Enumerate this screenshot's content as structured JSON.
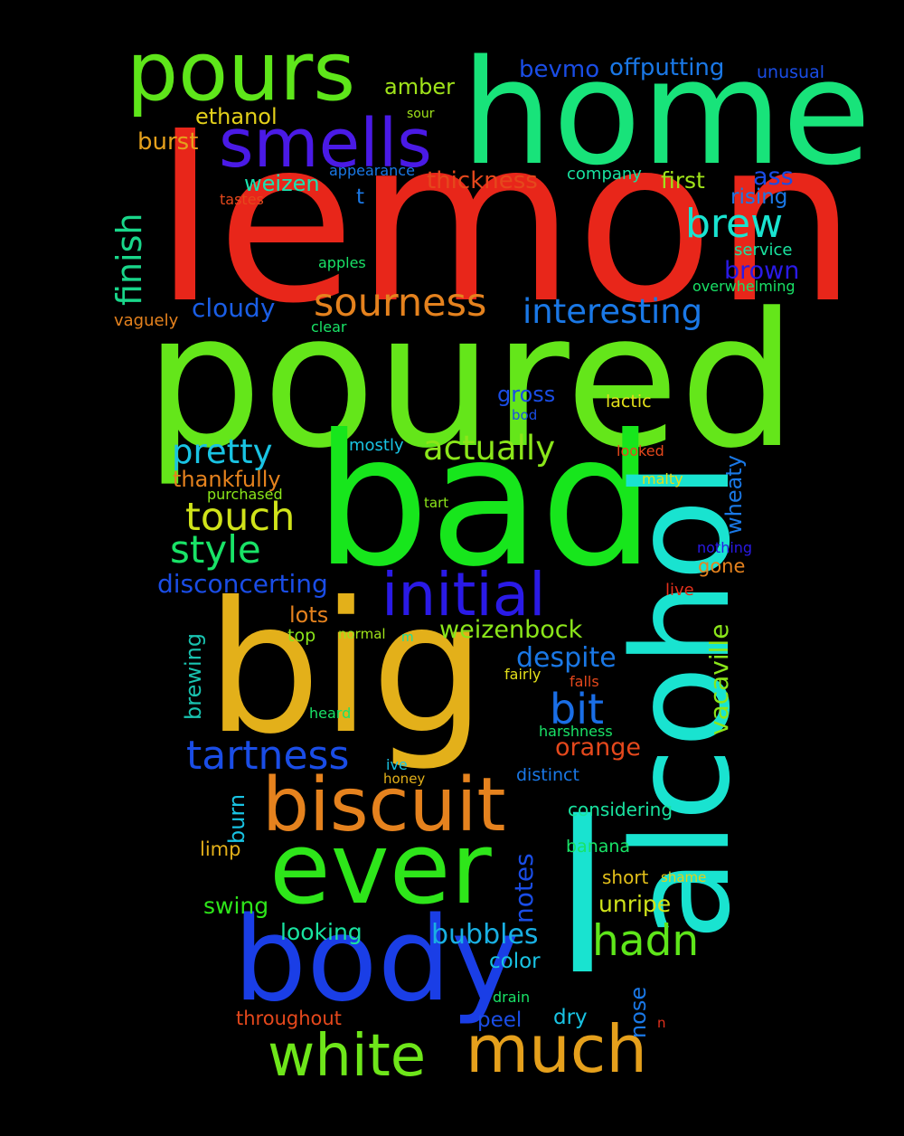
{
  "background": "#000000",
  "words": [
    {
      "text": "lemon",
      "color": "#e8261a"
    },
    {
      "text": "poured",
      "color": "#64e61a"
    },
    {
      "text": "bad",
      "color": "#17e61c"
    },
    {
      "text": "home",
      "color": "#18e37a"
    },
    {
      "text": "big",
      "color": "#e3b01a"
    },
    {
      "text": "alcohol",
      "color": "#19e3d0"
    },
    {
      "text": "pours",
      "color": "#5ee61a"
    },
    {
      "text": "smells",
      "color": "#4a1ae6"
    },
    {
      "text": "l",
      "color": "#19e3d0"
    },
    {
      "text": "body",
      "color": "#1a3ee6"
    },
    {
      "text": "ever",
      "color": "#2ee61a"
    },
    {
      "text": "biscuit",
      "color": "#e5821e"
    },
    {
      "text": "initial",
      "color": "#2a1ae6"
    },
    {
      "text": "much",
      "color": "#e5a01c"
    },
    {
      "text": "white",
      "color": "#6ee61a"
    },
    {
      "text": "sourness",
      "color": "#e5821e"
    },
    {
      "text": "finish",
      "color": "#19d68a"
    },
    {
      "text": "tartness",
      "color": "#1a4de6"
    },
    {
      "text": "brew",
      "color": "#19e3d0"
    },
    {
      "text": "hadn",
      "color": "#5ee61a"
    },
    {
      "text": "interesting",
      "color": "#1a78e6"
    },
    {
      "text": "actually",
      "color": "#8be61a"
    },
    {
      "text": "pretty",
      "color": "#19c3e3"
    },
    {
      "text": "touch",
      "color": "#d0e31a"
    },
    {
      "text": "style",
      "color": "#19e367"
    },
    {
      "text": "bit",
      "color": "#1a6ee6"
    },
    {
      "text": "vacaville",
      "color": "#8be61a"
    },
    {
      "text": "bubbles",
      "color": "#19b0e3"
    },
    {
      "text": "despite",
      "color": "#1a78e6"
    },
    {
      "text": "weizenbock",
      "color": "#8be61a"
    },
    {
      "text": "disconcerting",
      "color": "#1a4de6"
    },
    {
      "text": "notes",
      "color": "#1a4de6"
    },
    {
      "text": "cloudy",
      "color": "#1a5ee6"
    },
    {
      "text": "thickness",
      "color": "#e5481c"
    },
    {
      "text": "brown",
      "color": "#2a1ae6"
    },
    {
      "text": "bevmo",
      "color": "#1a4de6"
    },
    {
      "text": "offputting",
      "color": "#1a78e6"
    },
    {
      "text": "wheaty",
      "color": "#1a78e6"
    },
    {
      "text": "brewing",
      "color": "#19c3b0"
    },
    {
      "text": "orange",
      "color": "#e5481c"
    },
    {
      "text": "unripe",
      "color": "#d0e31a"
    },
    {
      "text": "looking",
      "color": "#19e3a0"
    },
    {
      "text": "swing",
      "color": "#2ee61a"
    },
    {
      "text": "nose",
      "color": "#1a78e6"
    },
    {
      "text": "first",
      "color": "#a0e31a"
    },
    {
      "text": "weizen",
      "color": "#19e3b0"
    },
    {
      "text": "ass",
      "color": "#1a4de6"
    },
    {
      "text": "burn",
      "color": "#19c3e3"
    },
    {
      "text": "burst",
      "color": "#e5a01c"
    },
    {
      "text": "amber",
      "color": "#a0e31a"
    },
    {
      "text": "thankfully",
      "color": "#e5821e"
    },
    {
      "text": "gross",
      "color": "#1a4de6"
    },
    {
      "text": "lots",
      "color": "#e5821e"
    },
    {
      "text": "rising",
      "color": "#1a78e6"
    },
    {
      "text": "ethanol",
      "color": "#e3d01a"
    },
    {
      "text": "color",
      "color": "#19c3e3"
    },
    {
      "text": "peel",
      "color": "#1a4de6"
    },
    {
      "text": "dry",
      "color": "#19c3e3"
    },
    {
      "text": "t",
      "color": "#1a78e6"
    },
    {
      "text": "throughout",
      "color": "#e5481c"
    },
    {
      "text": "limp",
      "color": "#e3b01a"
    },
    {
      "text": "considering",
      "color": "#19e3a0"
    },
    {
      "text": "short",
      "color": "#e3c01a"
    },
    {
      "text": "gone",
      "color": "#e5821e"
    },
    {
      "text": "distinct",
      "color": "#1a78e6"
    },
    {
      "text": "banana",
      "color": "#19e367"
    },
    {
      "text": "lactic",
      "color": "#e3e01a"
    },
    {
      "text": "mostly",
      "color": "#19c3e3"
    },
    {
      "text": "vaguely",
      "color": "#e5821e"
    },
    {
      "text": "service",
      "color": "#19e3a0"
    },
    {
      "text": "company",
      "color": "#19e3a0"
    },
    {
      "text": "top",
      "color": "#8be61a"
    },
    {
      "text": "overwhelming",
      "color": "#19e367"
    },
    {
      "text": "purchased",
      "color": "#8be61a"
    },
    {
      "text": "appearance",
      "color": "#1a78e6"
    },
    {
      "text": "unusual",
      "color": "#1a4de6"
    },
    {
      "text": "heard",
      "color": "#19e367"
    },
    {
      "text": "harshness",
      "color": "#19e367"
    },
    {
      "text": "looked",
      "color": "#e5481c"
    },
    {
      "text": "malty",
      "color": "#e3e01a"
    },
    {
      "text": "live",
      "color": "#e5301c"
    },
    {
      "text": "nothing",
      "color": "#2a1ae6"
    },
    {
      "text": "apples",
      "color": "#19e367"
    },
    {
      "text": "clear",
      "color": "#19e367"
    },
    {
      "text": "tastes",
      "color": "#e5481c"
    },
    {
      "text": "sour",
      "color": "#a0e31a"
    },
    {
      "text": "tart",
      "color": "#8be61a"
    },
    {
      "text": "bod",
      "color": "#1a4de6"
    },
    {
      "text": "normal",
      "color": "#a0e31a"
    },
    {
      "text": "m",
      "color": "#19e3a0"
    },
    {
      "text": "fairly",
      "color": "#e3e01a"
    },
    {
      "text": "falls",
      "color": "#e5481c"
    },
    {
      "text": "ive",
      "color": "#19c3e3"
    },
    {
      "text": "honey",
      "color": "#e3b01a"
    },
    {
      "text": "shame",
      "color": "#e3d01a"
    },
    {
      "text": "drain",
      "color": "#19e367"
    },
    {
      "text": "n",
      "color": "#e5301c"
    }
  ]
}
